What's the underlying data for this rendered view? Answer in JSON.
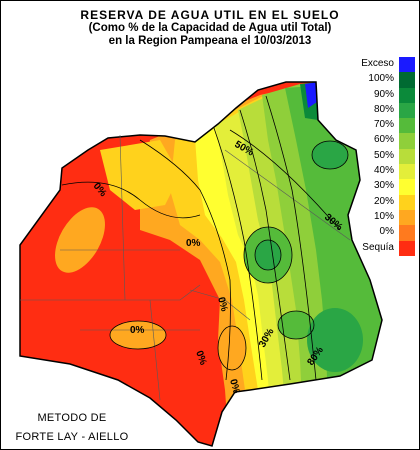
{
  "title": {
    "line1": "RESERVA DE AGUA UTIL EN EL SUELO",
    "line2": "(Como % de la Capacidad de Agua util Total)",
    "line3": "en la Region Pampeana el 10/03/2013"
  },
  "legend": [
    {
      "label": "Exceso",
      "color": "#1a1aff"
    },
    {
      "label": "100%",
      "color": "#006a32"
    },
    {
      "label": "90%",
      "color": "#0b8a3a"
    },
    {
      "label": "80%",
      "color": "#2aa645"
    },
    {
      "label": "70%",
      "color": "#55bb3a"
    },
    {
      "label": "60%",
      "color": "#8fcf3a"
    },
    {
      "label": "50%",
      "color": "#b8dd3a"
    },
    {
      "label": "40%",
      "color": "#e3ee3a"
    },
    {
      "label": "30%",
      "color": "#ffff30"
    },
    {
      "label": "20%",
      "color": "#ffd21c"
    },
    {
      "label": "10%",
      "color": "#ffa820"
    },
    {
      "label": "0%",
      "color": "#ff7a1e"
    },
    {
      "label": "Sequía",
      "color": "#ff2d12"
    }
  ],
  "contour_labels": [
    {
      "text": "50%"
    },
    {
      "text": "30%"
    },
    {
      "text": "0%"
    },
    {
      "text": "0%"
    },
    {
      "text": "0%"
    },
    {
      "text": "0%"
    },
    {
      "text": "0%"
    },
    {
      "text": "0%"
    },
    {
      "text": "30%"
    },
    {
      "text": "80%"
    }
  ],
  "method": {
    "line1": "METODO DE",
    "line2": "FORTE LAY - AIELLO"
  }
}
